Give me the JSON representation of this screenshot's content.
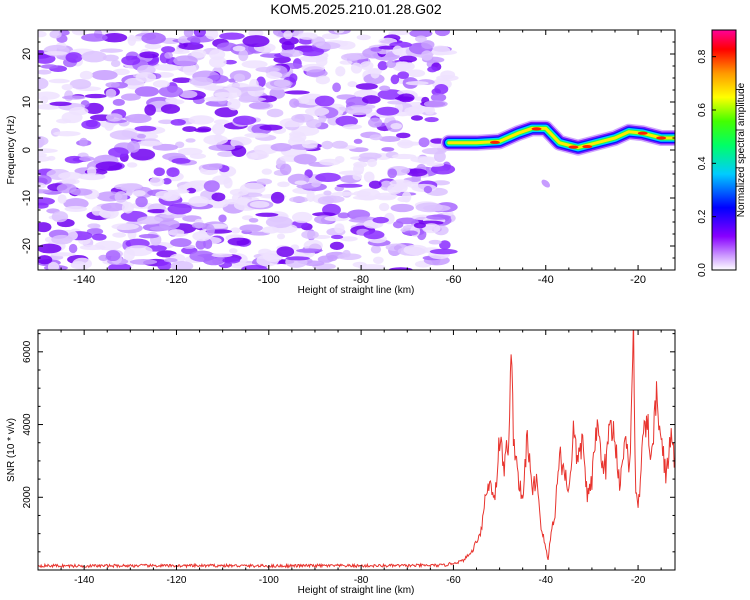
{
  "title": "KOM5.2025.210.01.28.G02",
  "chart_data": [
    {
      "type": "heatmap",
      "xlabel": "Height of straight line (km)",
      "ylabel": "Frequency (Hz)",
      "xlim": [
        -150,
        -12
      ],
      "ylim": [
        -25,
        25
      ],
      "x_ticks": [
        -140,
        -120,
        -100,
        -80,
        -60,
        -40,
        -20
      ],
      "y_ticks": [
        -20,
        -10,
        0,
        10,
        20
      ],
      "colorbar": {
        "label": "Normalized spectral amplitude",
        "range": [
          0.0,
          0.9
        ],
        "ticks": [
          0.0,
          0.2,
          0.4,
          0.6,
          0.8
        ],
        "colormap": "rainbow (white-violet-blue-cyan-green-yellow-orange-red-magenta)"
      },
      "description_regions": {
        "noise_region_x": [
          -150,
          -61
        ],
        "noise_amplitude_approx": 0.05,
        "signal_track_points": [
          {
            "x": -61,
            "f": 1.5
          },
          {
            "x": -55,
            "f": 1.5
          },
          {
            "x": -50,
            "f": 1.8
          },
          {
            "x": -46,
            "f": 3.5
          },
          {
            "x": -43,
            "f": 4.5
          },
          {
            "x": -40,
            "f": 4.5
          },
          {
            "x": -37,
            "f": 1.5
          },
          {
            "x": -33,
            "f": 0.5
          },
          {
            "x": -29,
            "f": 1.5
          },
          {
            "x": -25,
            "f": 2.5
          },
          {
            "x": -22,
            "f": 3.8
          },
          {
            "x": -19,
            "f": 3.5
          },
          {
            "x": -15,
            "f": 2.5
          },
          {
            "x": -12,
            "f": 2.5
          }
        ],
        "signal_peak_amplitude": 0.85
      }
    },
    {
      "type": "line",
      "xlabel": "Height of straight line (km)",
      "ylabel": "SNR (10 * v/v)",
      "xlim": [
        -150,
        -12
      ],
      "ylim": [
        0,
        6600
      ],
      "x_ticks": [
        -140,
        -120,
        -100,
        -80,
        -60,
        -40,
        -20
      ],
      "y_ticks": [
        2000,
        4000,
        6000
      ],
      "series": [
        {
          "color": "#e8342e",
          "x": [
            -150,
            -140,
            -130,
            -120,
            -110,
            -100,
            -90,
            -80,
            -70,
            -62,
            -58,
            -56,
            -54,
            -53,
            -52,
            -51,
            -50,
            -49,
            -48,
            -47.5,
            -47,
            -46,
            -45,
            -44,
            -43,
            -42,
            -41,
            -40,
            -39.5,
            -39,
            -38,
            -37,
            -36,
            -35,
            -34,
            -33,
            -32,
            -31,
            -30,
            -29,
            -28,
            -27,
            -26,
            -25,
            -24,
            -23,
            -22,
            -21.5,
            -21,
            -20.5,
            -20,
            -19,
            -18,
            -17,
            -16,
            -15,
            -14,
            -13,
            -12
          ],
          "y": [
            120,
            110,
            120,
            115,
            120,
            110,
            120,
            115,
            120,
            130,
            250,
            500,
            1100,
            2100,
            2400,
            2000,
            3600,
            2800,
            3700,
            5800,
            3800,
            2600,
            1800,
            3800,
            2100,
            2600,
            1200,
            600,
            250,
            900,
            1600,
            3200,
            2700,
            2200,
            3800,
            2900,
            3600,
            2000,
            2400,
            4000,
            3200,
            2800,
            4100,
            3600,
            2400,
            3500,
            3000,
            3900,
            6600,
            2100,
            1600,
            3500,
            4000,
            3100,
            4800,
            3600,
            2600,
            3600,
            3100
          ]
        }
      ]
    }
  ]
}
